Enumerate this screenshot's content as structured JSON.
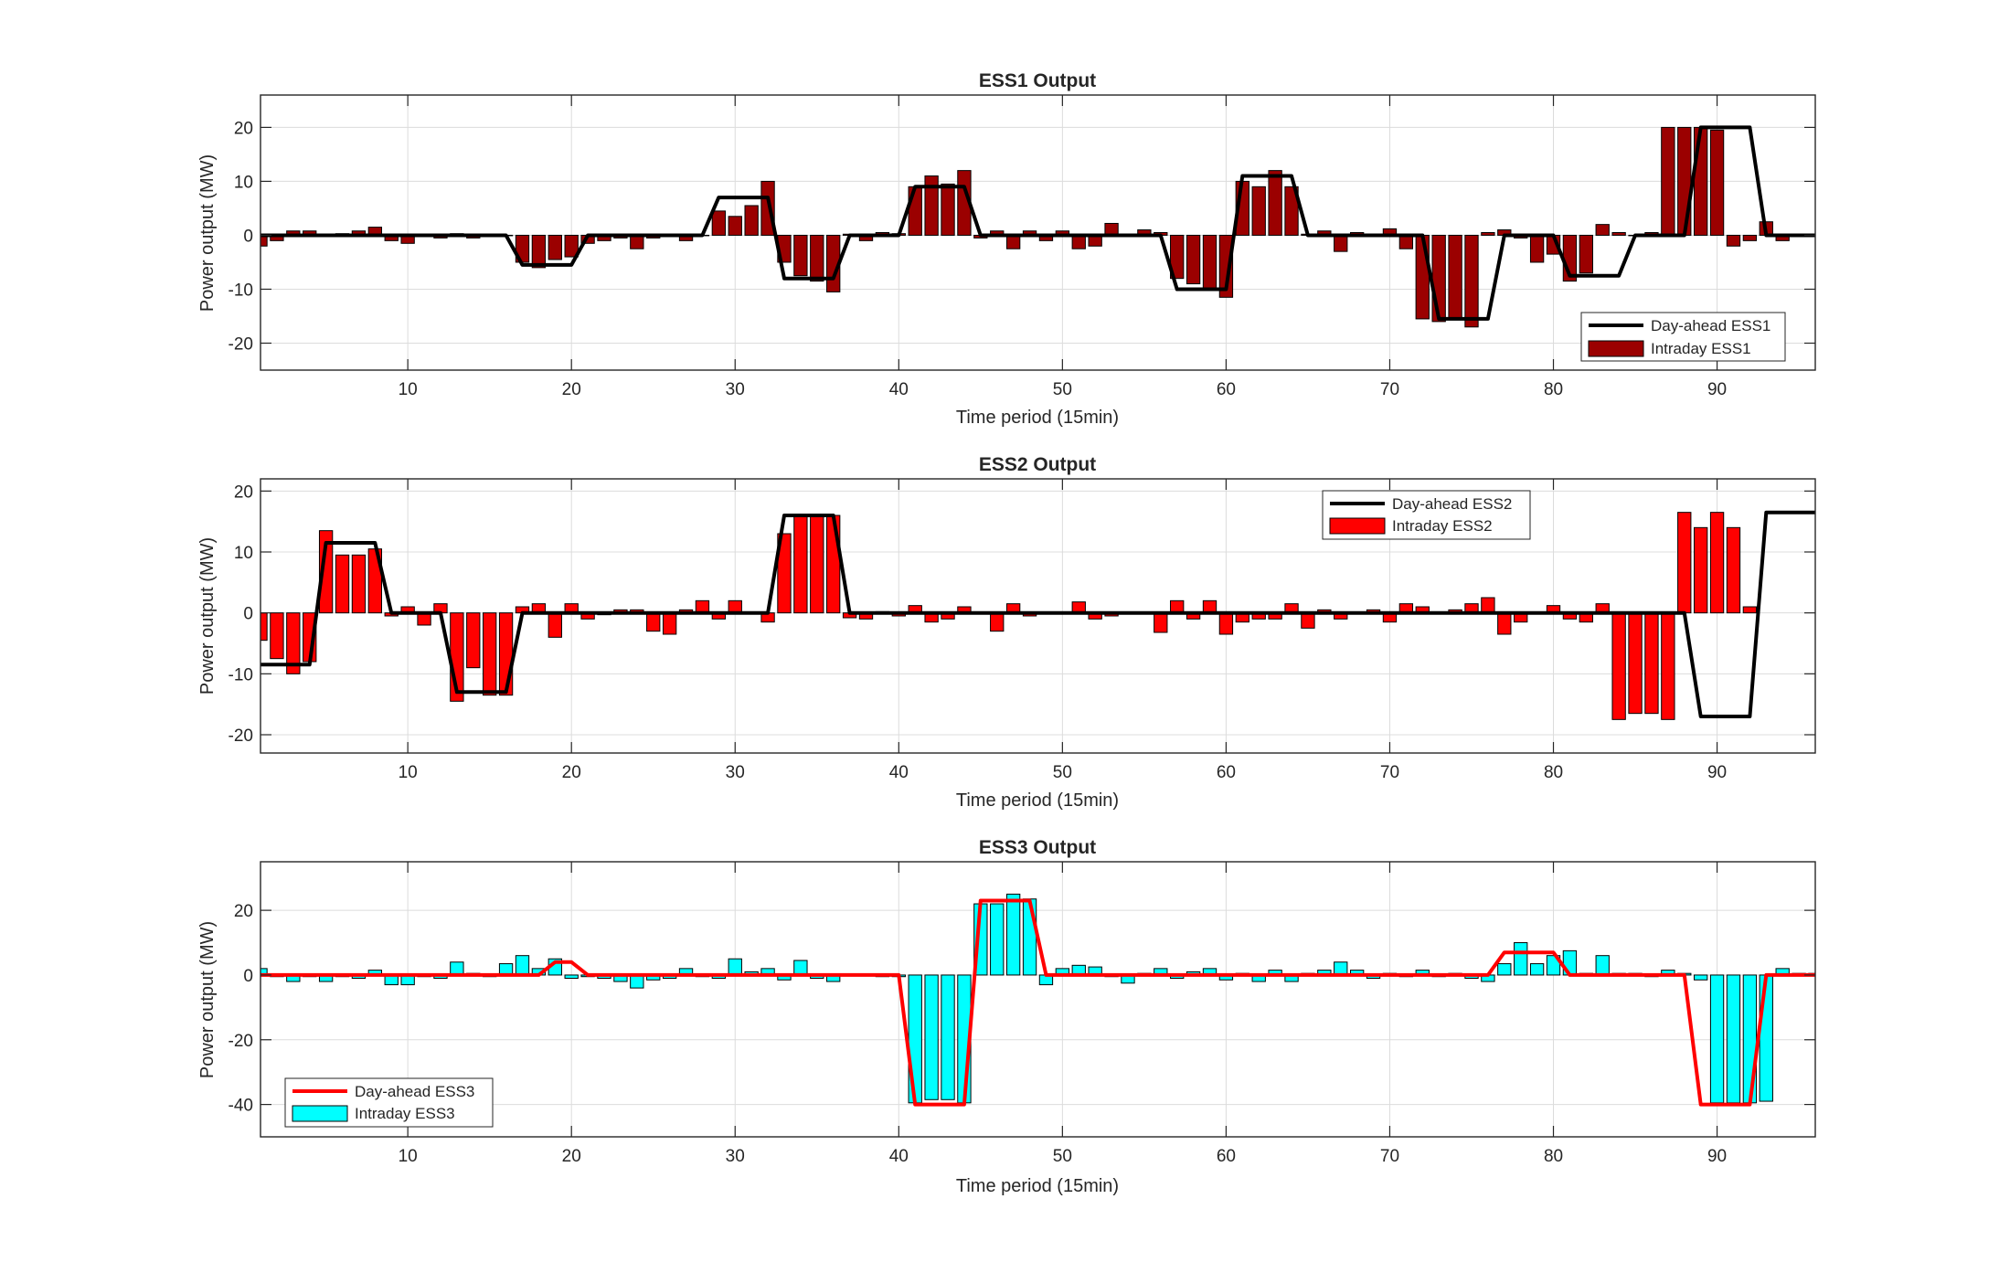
{
  "chart_data": [
    {
      "type": "bar",
      "title": "ESS1 Output",
      "xlabel": "Time period (15min)",
      "ylabel": "Power output (MW)",
      "xlim": [
        1,
        96
      ],
      "ylim": [
        -25,
        26
      ],
      "xticks": [
        10,
        20,
        30,
        40,
        50,
        60,
        70,
        80,
        90
      ],
      "yticks": [
        -20,
        -10,
        0,
        10,
        20
      ],
      "legend_position": "bottom-right",
      "grid": true,
      "colors": {
        "line": "#000000",
        "bar": "#9b0000"
      },
      "series": [
        {
          "name": "Day-ahead ESS1",
          "kind": "line",
          "values": [
            0,
            0,
            0,
            0,
            0,
            0,
            0,
            0,
            0,
            0,
            0,
            0,
            0,
            0,
            0,
            0,
            -5.5,
            -5.5,
            -5.5,
            -5.5,
            0,
            0,
            0,
            0,
            0,
            0,
            0,
            0,
            7,
            7,
            7,
            7,
            -8,
            -8,
            -8,
            -8,
            0,
            0,
            0,
            0,
            9,
            9,
            9,
            9,
            0,
            0,
            0,
            0,
            0,
            0,
            0,
            0,
            0,
            0,
            0,
            0,
            -10,
            -10,
            -10,
            -10,
            11,
            11,
            11,
            11,
            0,
            0,
            0,
            0,
            0,
            0,
            0,
            0,
            -15.5,
            -15.5,
            -15.5,
            -15.5,
            0,
            0,
            0,
            0,
            -7.5,
            -7.5,
            -7.5,
            -7.5,
            0,
            0,
            0,
            0,
            20,
            20,
            20,
            20,
            0,
            0,
            0,
            0
          ]
        },
        {
          "name": "Intraday ESS1",
          "kind": "bar",
          "values": [
            -2,
            -1,
            0.8,
            0.8,
            0.2,
            0.3,
            0.8,
            1.5,
            -1,
            -1.5,
            0.2,
            -0.5,
            0.3,
            -0.5,
            0,
            0,
            -5,
            -6,
            -4.5,
            -4,
            -1.5,
            -1,
            -0.5,
            -2.5,
            -0.5,
            -0.2,
            -1,
            0,
            4.5,
            3.5,
            5.5,
            10,
            -5,
            -7.5,
            -8.5,
            -10.5,
            0.2,
            -1,
            0.5,
            0.3,
            9,
            11,
            9.5,
            12,
            -0.5,
            0.8,
            -2.5,
            0.8,
            -1,
            0.8,
            -2.5,
            -2,
            2.2,
            0,
            1,
            0.5,
            -8,
            -9,
            -10,
            -11.5,
            10,
            9,
            12,
            9,
            0.2,
            0.8,
            -3,
            0.5,
            -0.2,
            1.2,
            -2.5,
            -15.5,
            -16,
            -15.5,
            -17,
            0.5,
            1,
            -0.5,
            -5,
            -3.5,
            -8.5,
            -7,
            2,
            0.5,
            0,
            0.5,
            20,
            20,
            20,
            19.5,
            -2,
            -1,
            2.5,
            -1
          ]
        }
      ]
    },
    {
      "type": "bar",
      "title": "ESS2 Output",
      "xlabel": "Time period (15min)",
      "ylabel": "Power output (MW)",
      "xlim": [
        1,
        96
      ],
      "ylim": [
        -23,
        22
      ],
      "xticks": [
        10,
        20,
        30,
        40,
        50,
        60,
        70,
        80,
        90
      ],
      "yticks": [
        -20,
        -10,
        0,
        10,
        20
      ],
      "legend_position": "top-right",
      "grid": true,
      "colors": {
        "line": "#000000",
        "bar": "#ff0000"
      },
      "series": [
        {
          "name": "Day-ahead ESS2",
          "kind": "line",
          "values": [
            -8.5,
            -8.5,
            -8.5,
            -8.5,
            11.5,
            11.5,
            11.5,
            11.5,
            0,
            0,
            0,
            0,
            -13,
            -13,
            -13,
            -13,
            0,
            0,
            0,
            0,
            0,
            0,
            0,
            0,
            0,
            0,
            0,
            0,
            0,
            0,
            0,
            0,
            16,
            16,
            16,
            16,
            0,
            0,
            0,
            0,
            0,
            0,
            0,
            0,
            0,
            0,
            0,
            0,
            0,
            0,
            0,
            0,
            0,
            0,
            0,
            0,
            0,
            0,
            0,
            0,
            0,
            0,
            0,
            0,
            0,
            0,
            0,
            0,
            0,
            0,
            0,
            0,
            0,
            0,
            0,
            0,
            0,
            0,
            0,
            0,
            0,
            0,
            0,
            0,
            0,
            0,
            0,
            0,
            -17,
            -17,
            -17,
            -17,
            16.5,
            16.5,
            16.5,
            16.5
          ]
        },
        {
          "name": "Intraday ESS2",
          "kind": "bar",
          "values": [
            -4.5,
            -7.5,
            -10,
            -8,
            13.5,
            9.5,
            9.5,
            10.5,
            -0.5,
            1,
            -2,
            1.5,
            -14.5,
            -9,
            -13.5,
            -13.5,
            1,
            1.5,
            -4,
            1.5,
            -1,
            -0.3,
            0.5,
            0.5,
            -3,
            -3.5,
            0.5,
            2,
            -1,
            2,
            0,
            -1.5,
            13,
            16,
            16,
            16,
            -0.8,
            -1,
            0.2,
            -0.5,
            1.2,
            -1.5,
            -1,
            1,
            0,
            -3,
            1.5,
            -0.5,
            0,
            0,
            1.8,
            -1,
            -0.5,
            0,
            0,
            -3.2,
            2,
            -1,
            2,
            -3.5,
            -1.5,
            -1,
            -1,
            1.5,
            -2.5,
            0.5,
            -1,
            0,
            0.5,
            -1.5,
            1.5,
            1,
            0,
            0.5,
            1.5,
            2.5,
            -3.5,
            -1.5,
            0,
            1.2,
            -1,
            -1.5,
            1.5,
            -17.5,
            -16.5,
            -16.5,
            -17.5,
            16.5,
            14,
            16.5,
            14,
            1
          ]
        }
      ]
    },
    {
      "type": "bar",
      "title": "ESS3 Output",
      "xlabel": "Time period (15min)",
      "ylabel": "Power output (MW)",
      "xlim": [
        1,
        96
      ],
      "ylim": [
        -50,
        35
      ],
      "xticks": [
        10,
        20,
        30,
        40,
        50,
        60,
        70,
        80,
        90
      ],
      "yticks": [
        -40,
        -20,
        0,
        20
      ],
      "legend_position": "bottom-left",
      "grid": true,
      "colors": {
        "line": "#ff0000",
        "bar": "#00ffff"
      },
      "series": [
        {
          "name": "Day-ahead ESS3",
          "kind": "line",
          "values": [
            0,
            0,
            0,
            0,
            0,
            0,
            0,
            0,
            0,
            0,
            0,
            0,
            0,
            0,
            0,
            0,
            0,
            0,
            4,
            4,
            0,
            0,
            0,
            0,
            0,
            0,
            0,
            0,
            0,
            0,
            0,
            0,
            0,
            0,
            0,
            0,
            0,
            0,
            0,
            0,
            -40,
            -40,
            -40,
            -40,
            23,
            23,
            23,
            23,
            0,
            0,
            0,
            0,
            0,
            0,
            0,
            0,
            0,
            0,
            0,
            0,
            0,
            0,
            0,
            0,
            0,
            0,
            0,
            0,
            0,
            0,
            0,
            0,
            0,
            0,
            0,
            0,
            7,
            7,
            7,
            7,
            0,
            0,
            0,
            0,
            0,
            0,
            0,
            0,
            -40,
            -40,
            -40,
            -40,
            0,
            0,
            0,
            0
          ]
        },
        {
          "name": "Intraday ESS3",
          "kind": "bar",
          "values": [
            2,
            -0.5,
            -2,
            -0.5,
            -2,
            -0.5,
            -1,
            1.5,
            -3,
            -3,
            -0.5,
            -1,
            4,
            0.5,
            -0.5,
            3.5,
            6,
            2,
            5,
            -1,
            -0.5,
            -1,
            -2,
            -4,
            -1.5,
            -1,
            2,
            -0.5,
            -1,
            5,
            1,
            2,
            -1.5,
            4.5,
            -1,
            -2,
            0,
            0,
            -0.5,
            -0.5,
            -39.5,
            -38.5,
            -38.5,
            -39.5,
            22,
            22,
            25,
            23.5,
            -3,
            2,
            3,
            2.5,
            -0.5,
            -2.5,
            0.5,
            2,
            -1,
            1,
            2,
            -1.5,
            0.5,
            -2,
            1.5,
            -2,
            0.5,
            1.5,
            4,
            1.5,
            -1,
            0.5,
            -0.5,
            1.5,
            -0.5,
            0.5,
            -1,
            -2,
            3.5,
            10,
            3.5,
            6,
            7.5,
            0.5,
            6,
            0.5,
            0.5,
            -0.5,
            1.5,
            0.5,
            -1.5,
            -39.5,
            -39.5,
            -39.5,
            -39,
            2,
            0.5,
            0.5
          ]
        }
      ]
    }
  ]
}
